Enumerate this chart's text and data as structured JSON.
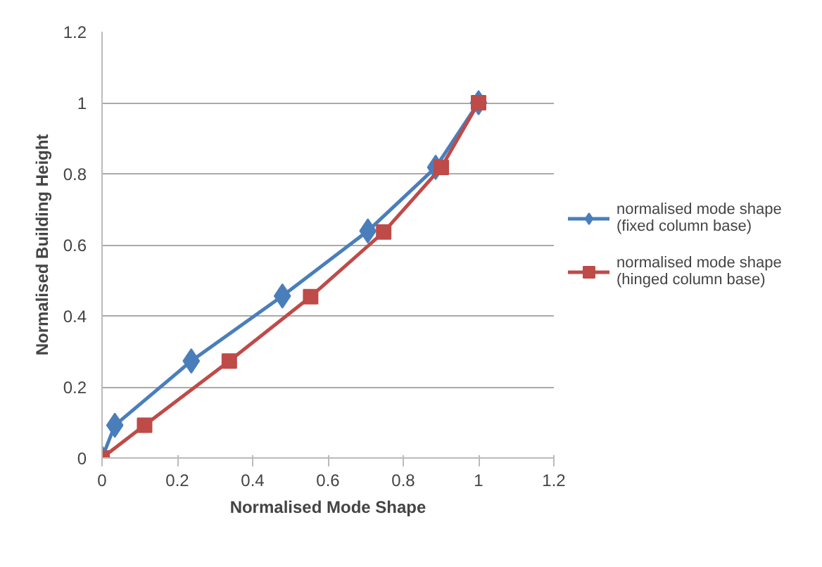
{
  "chart_data": {
    "type": "line",
    "xlabel": "Normalised Mode Shape",
    "ylabel": "Normalised Building Height",
    "xlim": [
      0,
      1.2
    ],
    "ylim": [
      0,
      1.2
    ],
    "xticks": [
      0,
      0.2,
      0.4,
      0.6,
      0.8,
      1,
      1.2
    ],
    "yticks": [
      0,
      0.2,
      0.4,
      0.6,
      0.8,
      1,
      1.2
    ],
    "grid": "y",
    "legend": "right",
    "line_style": "solid",
    "series": [
      {
        "name": "normalised mode shape (fixed column base)",
        "color": "#4a7ebb",
        "marker": "diamond",
        "x": [
          0,
          0.034,
          0.237,
          0.479,
          0.706,
          0.886,
          1
        ],
        "values": [
          0,
          0.092,
          0.273,
          0.456,
          0.639,
          0.818,
          1
        ]
      },
      {
        "name": "normalised mode shape (hinged column base)",
        "color": "#be4b48",
        "marker": "square",
        "x": [
          0,
          0.113,
          0.338,
          0.554,
          0.748,
          0.901,
          1
        ],
        "values": [
          0,
          0.092,
          0.273,
          0.454,
          0.636,
          0.818,
          1
        ]
      }
    ]
  }
}
